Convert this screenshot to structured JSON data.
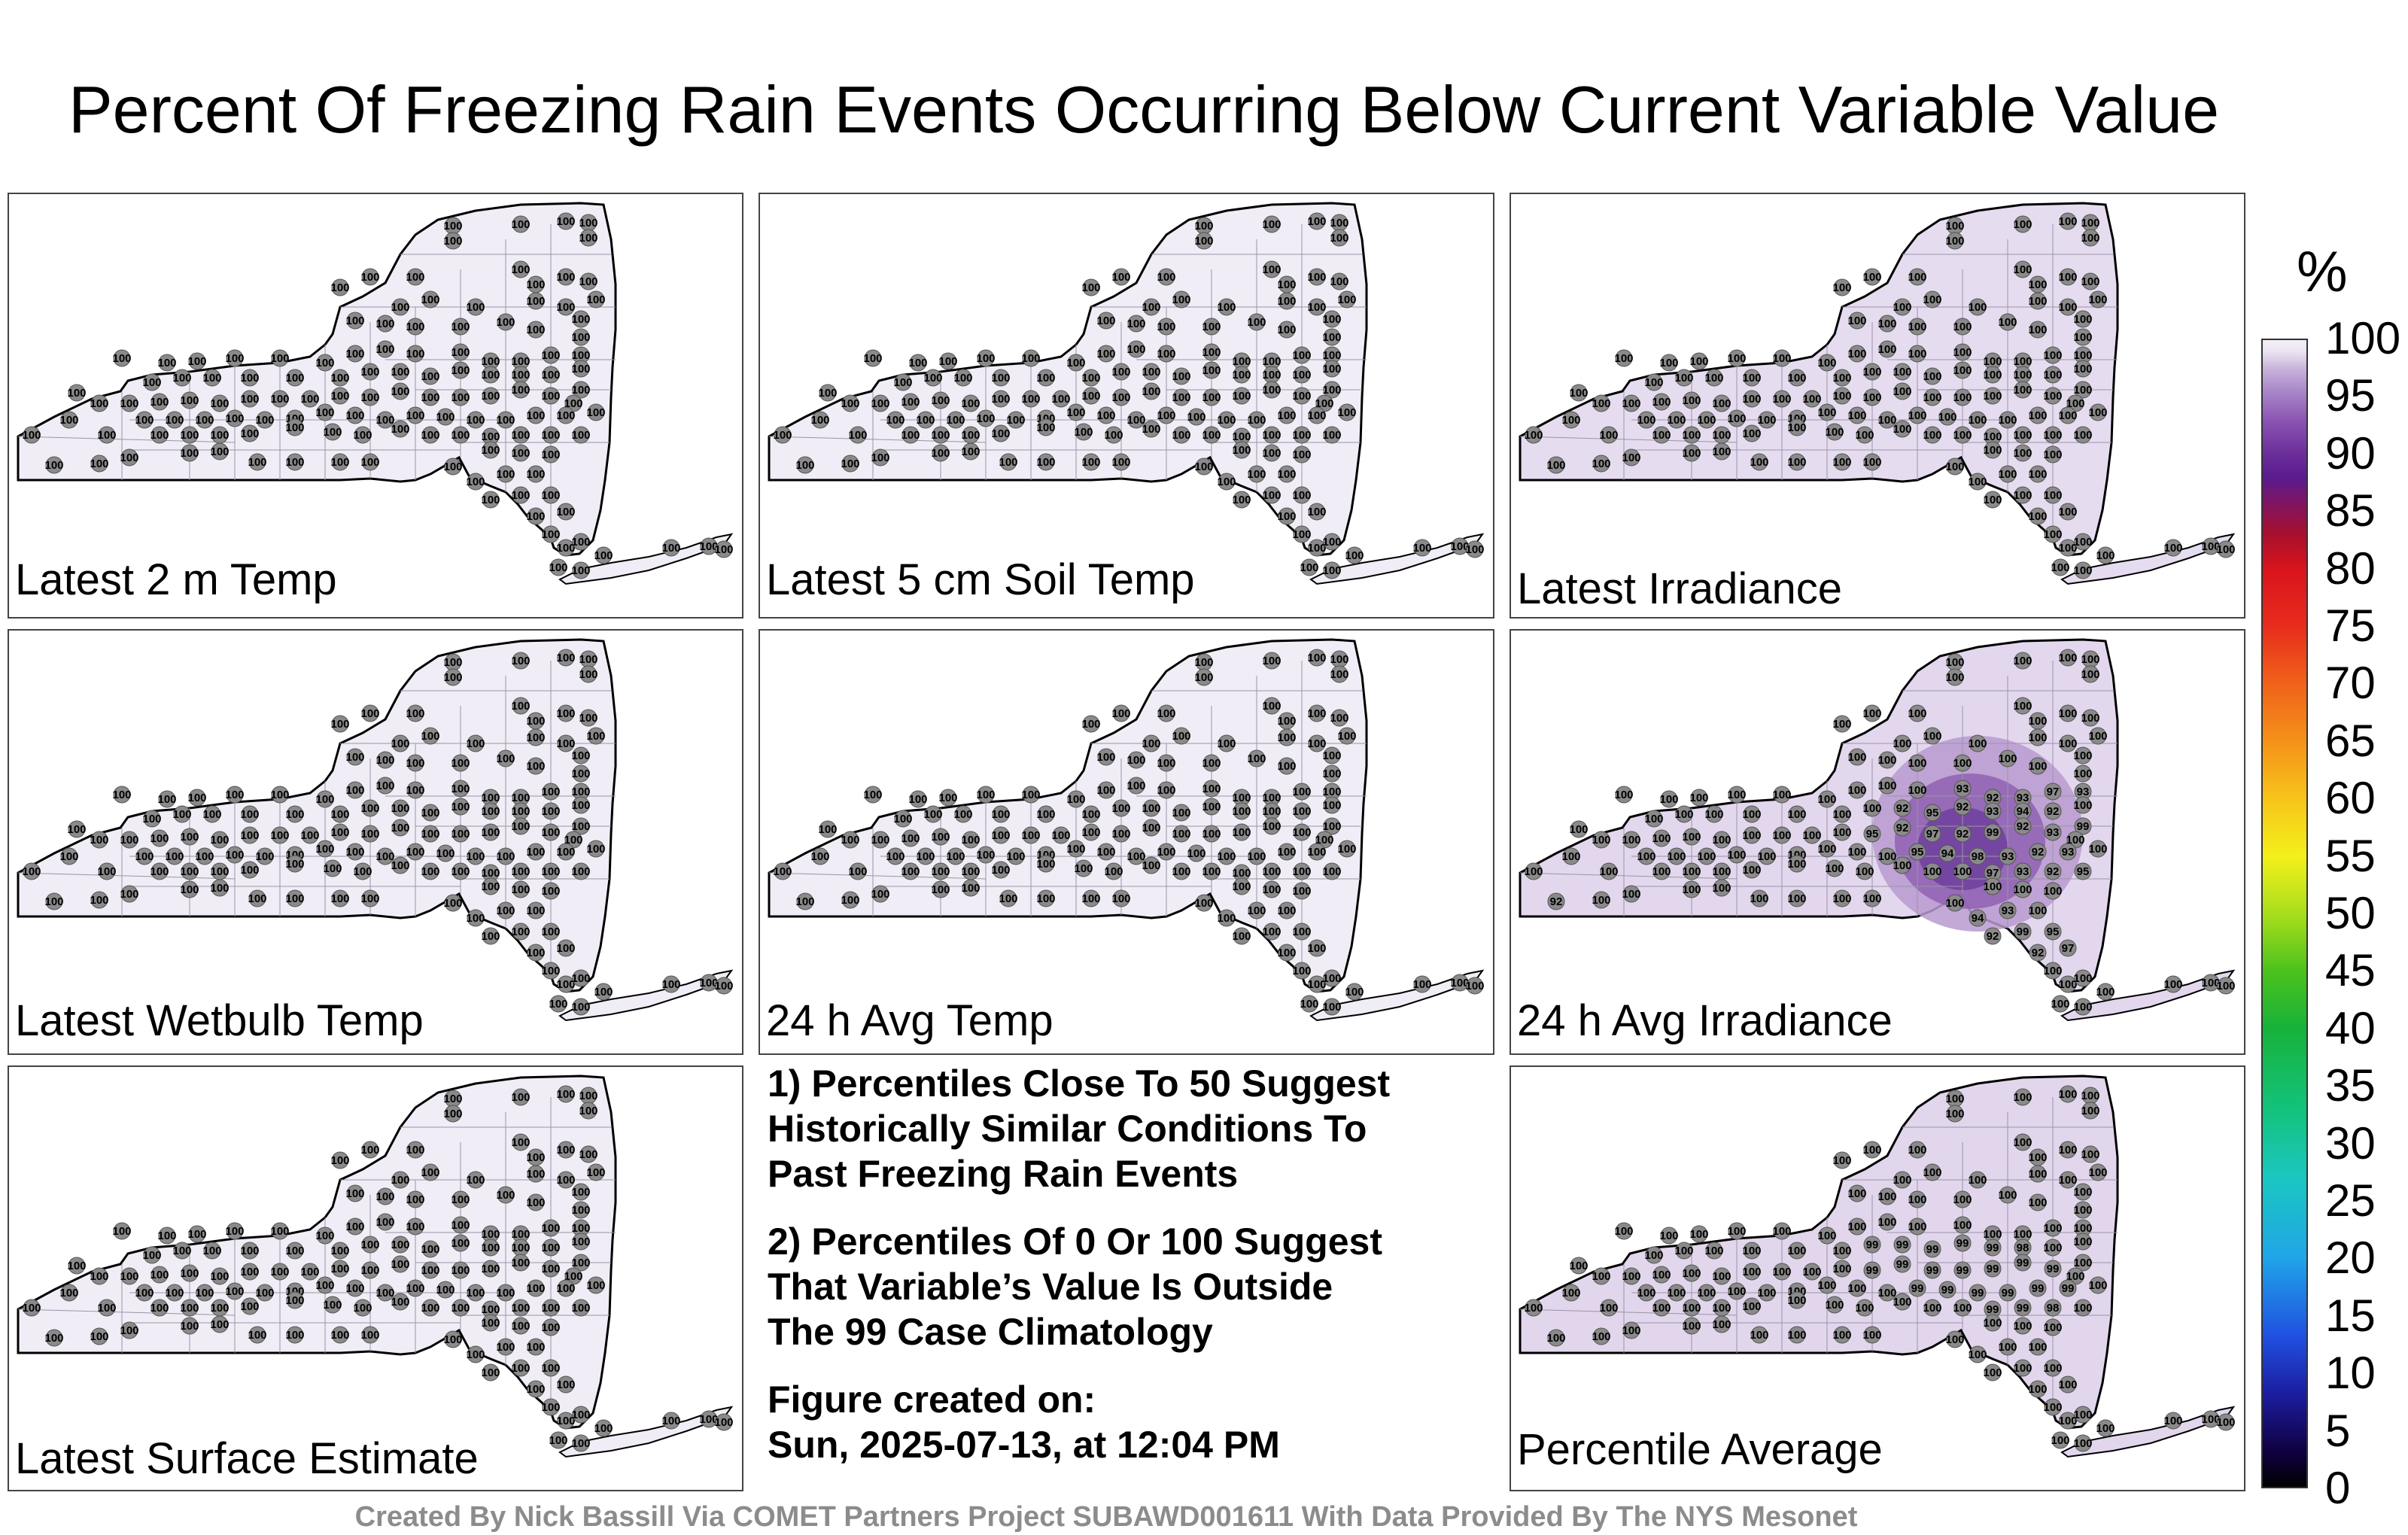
{
  "title": "Percent Of Freezing Rain Events Occurring Below Current Variable Value",
  "panels": [
    {
      "label": "Latest 2 m Temp",
      "fill": "#f1edf6",
      "hot": false
    },
    {
      "label": "Latest 5 cm Soil Temp",
      "fill": "#f1edf6",
      "hot": false
    },
    {
      "label": "Latest Irradiance",
      "fill": "#e6dcef",
      "hot": false
    },
    {
      "label": "Latest Wetbulb Temp",
      "fill": "#f1edf6",
      "hot": false
    },
    {
      "label": "24 h Avg Temp",
      "fill": "#f1edf6",
      "hot": false
    },
    {
      "label": "24 h Avg Irradiance",
      "fill": "#e3d7ee",
      "hot": true
    },
    {
      "label": "Latest Surface Estimate",
      "fill": "#f1edf6",
      "hot": false
    },
    {
      "label": "Percentile Average",
      "fill": "#e2d6ec",
      "hot": false
    }
  ],
  "notes": [
    [
      "1) Percentiles Close To 50 Suggest",
      "Historically Similar Conditions To",
      "Past Freezing Rain Events"
    ],
    [
      "2) Percentiles Of 0 Or 100 Suggest",
      "That Variable’s Value Is Outside",
      "The 99 Case Climatology"
    ],
    [
      "Figure created on:",
      "Sun, 2025-07-13, at 12:04 PM"
    ]
  ],
  "colorbar": {
    "title": "%",
    "ticks": [
      "100",
      "95",
      "90",
      "85",
      "80",
      "75",
      "70",
      "65",
      "60",
      "55",
      "50",
      "45",
      "40",
      "35",
      "30",
      "25",
      "20",
      "15",
      "10",
      "5",
      "0"
    ]
  },
  "credit": "Created By Nick Bassill Via COMET Partners Project SUBAWD001611 With Data Provided By The NYS Mesonet",
  "station_values": {
    "default": "100",
    "24 h Avg Irradiance": [
      "93",
      "92",
      "93",
      "97",
      "93",
      "92",
      "95",
      "92",
      "93",
      "94",
      "92",
      "99",
      "95",
      "92",
      "97",
      "92",
      "99",
      "92",
      "93",
      "95",
      "94",
      "98"
    ],
    "Percentile Average": [
      "99",
      "99",
      "99",
      "99",
      "99",
      "98",
      "99",
      "99",
      "99",
      "99",
      "99",
      "99",
      "99",
      "99",
      "99",
      "99",
      "99",
      "99",
      "99",
      "99",
      "99",
      "98"
    ]
  }
}
